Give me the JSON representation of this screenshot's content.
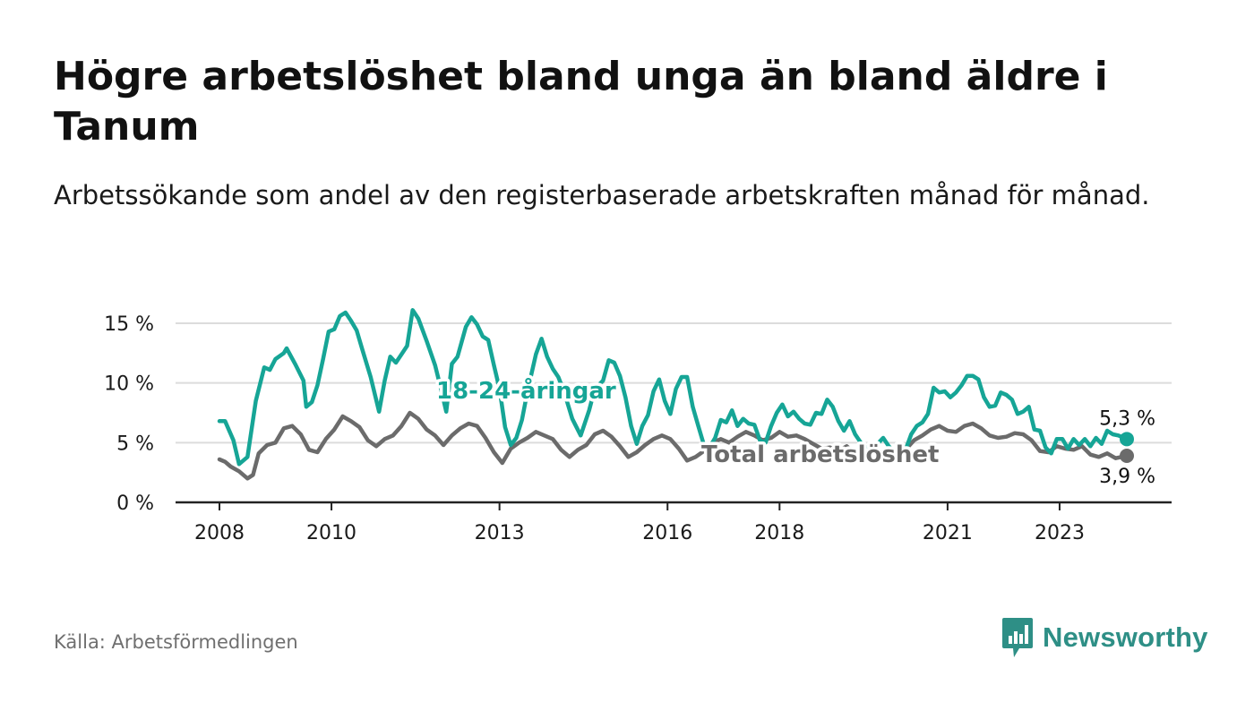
{
  "title": "Högre arbetslöshet bland unga än bland äldre i Tanum",
  "subtitle": "Arbetssökande som andel av den registerbaserade arbetskraften månad för månad.",
  "source": "Källa: Arbetsförmedlingen",
  "brand": {
    "name": "Newsworthy",
    "logo_icon": "bar-chart-speech-bubble-icon"
  },
  "colors": {
    "youth": "#16a596",
    "total": "#6b6b6b",
    "grid": "#dcdcdc",
    "axis": "#222222",
    "brand": "#2e8f86"
  },
  "chart_data": {
    "type": "line",
    "title": "Högre arbetslöshet bland unga än bland äldre i Tanum",
    "xlabel": "",
    "ylabel": "",
    "x_range": [
      2008.0,
      2024.2
    ],
    "ylim": [
      0,
      15
    ],
    "y_ticks": [
      {
        "value": 0,
        "label": "0 %"
      },
      {
        "value": 5,
        "label": "5 %"
      },
      {
        "value": 10,
        "label": "10 %"
      },
      {
        "value": 15,
        "label": "15 %"
      }
    ],
    "x_ticks": [
      {
        "value": 2008,
        "label": "2008"
      },
      {
        "value": 2010,
        "label": "2010"
      },
      {
        "value": 2013,
        "label": "2013"
      },
      {
        "value": 2016,
        "label": "2016"
      },
      {
        "value": 2018,
        "label": "2018"
      },
      {
        "value": 2021,
        "label": "2021"
      },
      {
        "value": 2023,
        "label": "2023"
      }
    ],
    "grid": true,
    "series": [
      {
        "name": "18-24-åringar",
        "label": "18-24-åringar",
        "color_key": "youth",
        "end_label": "5,3 %",
        "points": [
          [
            2008.0,
            6.8
          ],
          [
            2008.1,
            6.8
          ],
          [
            2008.25,
            5.2
          ],
          [
            2008.35,
            3.2
          ],
          [
            2008.5,
            3.8
          ],
          [
            2008.65,
            8.5
          ],
          [
            2008.8,
            11.3
          ],
          [
            2008.9,
            11.1
          ],
          [
            2009.0,
            12.0
          ],
          [
            2009.15,
            12.5
          ],
          [
            2009.2,
            12.9
          ],
          [
            2009.35,
            11.6
          ],
          [
            2009.5,
            10.2
          ],
          [
            2009.55,
            8.0
          ],
          [
            2009.65,
            8.4
          ],
          [
            2009.75,
            9.8
          ],
          [
            2009.85,
            12.0
          ],
          [
            2009.95,
            14.3
          ],
          [
            2010.05,
            14.5
          ],
          [
            2010.15,
            15.6
          ],
          [
            2010.25,
            15.9
          ],
          [
            2010.35,
            15.2
          ],
          [
            2010.45,
            14.4
          ],
          [
            2010.55,
            12.8
          ],
          [
            2010.7,
            10.5
          ],
          [
            2010.85,
            7.6
          ],
          [
            2010.95,
            10.2
          ],
          [
            2011.05,
            12.2
          ],
          [
            2011.15,
            11.7
          ],
          [
            2011.25,
            12.4
          ],
          [
            2011.35,
            13.1
          ],
          [
            2011.45,
            16.1
          ],
          [
            2011.55,
            15.4
          ],
          [
            2011.7,
            13.5
          ],
          [
            2011.85,
            11.5
          ],
          [
            2011.95,
            9.6
          ],
          [
            2012.05,
            7.6
          ],
          [
            2012.15,
            11.6
          ],
          [
            2012.25,
            12.2
          ],
          [
            2012.4,
            14.7
          ],
          [
            2012.5,
            15.5
          ],
          [
            2012.6,
            14.9
          ],
          [
            2012.7,
            13.9
          ],
          [
            2012.8,
            13.6
          ],
          [
            2012.9,
            11.5
          ],
          [
            2013.0,
            9.5
          ],
          [
            2013.1,
            6.3
          ],
          [
            2013.2,
            4.8
          ],
          [
            2013.3,
            5.4
          ],
          [
            2013.4,
            6.9
          ],
          [
            2013.5,
            9.3
          ],
          [
            2013.65,
            12.4
          ],
          [
            2013.75,
            13.7
          ],
          [
            2013.85,
            12.2
          ],
          [
            2013.95,
            11.2
          ],
          [
            2014.05,
            10.5
          ],
          [
            2014.15,
            9.3
          ],
          [
            2014.3,
            7.0
          ],
          [
            2014.45,
            5.6
          ],
          [
            2014.6,
            7.7
          ],
          [
            2014.7,
            9.5
          ],
          [
            2014.85,
            10.2
          ],
          [
            2014.95,
            11.9
          ],
          [
            2015.05,
            11.7
          ],
          [
            2015.15,
            10.6
          ],
          [
            2015.25,
            8.8
          ],
          [
            2015.35,
            6.4
          ],
          [
            2015.45,
            4.9
          ],
          [
            2015.55,
            6.4
          ],
          [
            2015.65,
            7.3
          ],
          [
            2015.75,
            9.3
          ],
          [
            2015.85,
            10.3
          ],
          [
            2015.95,
            8.5
          ],
          [
            2016.05,
            7.4
          ],
          [
            2016.15,
            9.5
          ],
          [
            2016.25,
            10.5
          ],
          [
            2016.35,
            10.5
          ],
          [
            2016.45,
            8.0
          ],
          [
            2016.55,
            6.4
          ],
          [
            2016.65,
            4.8
          ],
          [
            2016.75,
            4.6
          ],
          [
            2016.85,
            5.4
          ],
          [
            2016.95,
            6.9
          ],
          [
            2017.05,
            6.7
          ],
          [
            2017.15,
            7.7
          ],
          [
            2017.25,
            6.4
          ],
          [
            2017.35,
            7.0
          ],
          [
            2017.45,
            6.6
          ],
          [
            2017.55,
            6.5
          ],
          [
            2017.65,
            5.2
          ]
        ],
        "note": "points follow the visible curve (first part)"
      },
      {
        "name": "Total arbetslöshet",
        "label": "Total arbetslöshet",
        "color_key": "total",
        "end_label": "3,9 %",
        "points": [
          [
            2008.0,
            3.6
          ],
          [
            2008.1,
            3.4
          ],
          [
            2008.2,
            3.0
          ],
          [
            2008.35,
            2.6
          ],
          [
            2008.5,
            2.0
          ],
          [
            2008.6,
            2.3
          ],
          [
            2008.7,
            4.1
          ],
          [
            2008.85,
            4.8
          ],
          [
            2009.0,
            5.0
          ],
          [
            2009.15,
            6.2
          ],
          [
            2009.3,
            6.4
          ],
          [
            2009.45,
            5.7
          ],
          [
            2009.6,
            4.4
          ],
          [
            2009.75,
            4.2
          ],
          [
            2009.9,
            5.3
          ],
          [
            2010.05,
            6.1
          ],
          [
            2010.2,
            7.2
          ],
          [
            2010.35,
            6.8
          ],
          [
            2010.5,
            6.3
          ],
          [
            2010.65,
            5.2
          ],
          [
            2010.8,
            4.7
          ],
          [
            2010.95,
            5.3
          ],
          [
            2011.1,
            5.6
          ],
          [
            2011.25,
            6.4
          ],
          [
            2011.4,
            7.5
          ],
          [
            2011.55,
            7.0
          ],
          [
            2011.7,
            6.1
          ],
          [
            2011.85,
            5.6
          ],
          [
            2012.0,
            4.8
          ],
          [
            2012.15,
            5.6
          ],
          [
            2012.3,
            6.2
          ],
          [
            2012.45,
            6.6
          ],
          [
            2012.6,
            6.4
          ],
          [
            2012.75,
            5.4
          ],
          [
            2012.9,
            4.2
          ],
          [
            2013.05,
            3.3
          ],
          [
            2013.2,
            4.5
          ],
          [
            2013.35,
            5.0
          ],
          [
            2013.5,
            5.4
          ],
          [
            2013.65,
            5.9
          ],
          [
            2013.8,
            5.6
          ],
          [
            2013.95,
            5.3
          ],
          [
            2014.1,
            4.4
          ],
          [
            2014.25,
            3.8
          ],
          [
            2014.4,
            4.4
          ],
          [
            2014.55,
            4.8
          ],
          [
            2014.7,
            5.7
          ],
          [
            2014.85,
            6.0
          ],
          [
            2015.0,
            5.5
          ],
          [
            2015.15,
            4.7
          ],
          [
            2015.3,
            3.8
          ],
          [
            2015.45,
            4.2
          ],
          [
            2015.6,
            4.8
          ],
          [
            2015.75,
            5.3
          ],
          [
            2015.9,
            5.6
          ],
          [
            2016.05,
            5.3
          ],
          [
            2016.2,
            4.5
          ],
          [
            2016.35,
            3.5
          ],
          [
            2016.5,
            3.8
          ],
          [
            2016.65,
            4.3
          ],
          [
            2016.8,
            5.0
          ],
          [
            2016.95,
            5.3
          ],
          [
            2017.1,
            5.0
          ]
        ]
      }
    ]
  }
}
